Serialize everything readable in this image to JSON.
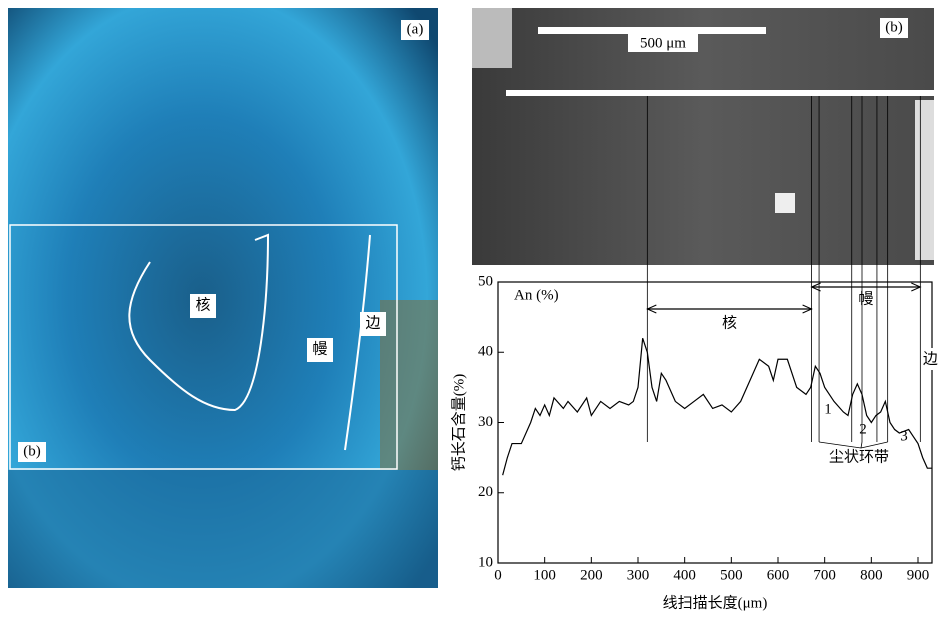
{
  "panel_a": {
    "label": "(a)",
    "box_label": "(b)",
    "core": "核",
    "mantle": "幔",
    "rim": "边"
  },
  "panel_b": {
    "label": "(b)",
    "scale_bar": "500 μm"
  },
  "chart_data": {
    "type": "line",
    "series_label": "An (%)",
    "xlabel": "线扫描长度(μm)",
    "ylabel": "钙长石含量(%)",
    "x": [
      10,
      20,
      30,
      50,
      70,
      80,
      90,
      100,
      110,
      120,
      140,
      150,
      170,
      190,
      200,
      220,
      240,
      260,
      280,
      290,
      300,
      310,
      320,
      330,
      340,
      350,
      360,
      380,
      400,
      420,
      440,
      460,
      480,
      500,
      520,
      540,
      560,
      580,
      590,
      600,
      620,
      640,
      660,
      670,
      680,
      690,
      700,
      720,
      740,
      750,
      760,
      770,
      780,
      790,
      800,
      810,
      820,
      830,
      840,
      850,
      860,
      880,
      890,
      900,
      910,
      920,
      930
    ],
    "values": [
      22.5,
      25,
      27,
      27,
      30,
      32,
      31,
      32.5,
      31,
      33.5,
      32,
      33,
      31.5,
      33.5,
      31,
      33,
      32,
      33,
      32.5,
      33,
      35,
      42,
      40,
      35,
      33,
      37,
      36,
      33,
      32,
      33,
      34,
      32,
      32.5,
      31.5,
      33,
      36,
      39,
      38,
      36,
      39,
      39,
      35,
      34,
      35,
      38,
      37,
      35,
      33,
      31.5,
      31,
      34,
      35.5,
      34,
      31,
      30,
      31,
      31.5,
      33,
      30,
      29,
      28.5,
      29,
      28,
      27,
      25,
      23.5,
      23.5
    ],
    "color": "#000000",
    "xlim": [
      0,
      930
    ],
    "ylim": [
      10,
      50
    ],
    "xticks": [
      0,
      100,
      200,
      300,
      400,
      500,
      600,
      700,
      800,
      900
    ],
    "yticks": [
      10,
      20,
      30,
      40,
      50
    ],
    "zone_lines": [
      320,
      672,
      688,
      758,
      780,
      812,
      835,
      905
    ],
    "core": "核",
    "mantle": "幔",
    "rim": "边",
    "band_numbers": [
      "1",
      "2",
      "3"
    ],
    "band_label": "尘状环带"
  }
}
